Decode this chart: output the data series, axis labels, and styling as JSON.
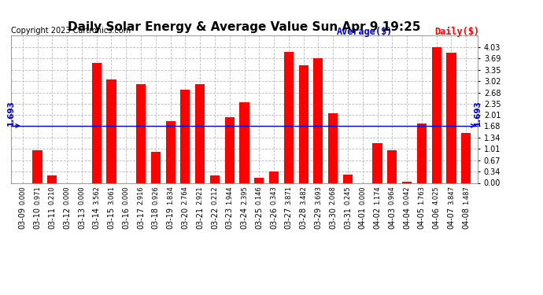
{
  "title": "Daily Solar Energy & Average Value Sun Apr 9 19:25",
  "copyright": "Copyright 2023 Cartronics.com",
  "legend_average": "Average($)",
  "legend_daily": "Daily($)",
  "average_value": 1.693,
  "categories": [
    "03-09",
    "03-10",
    "03-11",
    "03-12",
    "03-13",
    "03-14",
    "03-15",
    "03-16",
    "03-17",
    "03-18",
    "03-19",
    "03-20",
    "03-21",
    "03-22",
    "03-23",
    "03-24",
    "03-25",
    "03-26",
    "03-27",
    "03-28",
    "03-29",
    "03-30",
    "03-31",
    "04-01",
    "04-02",
    "04-03",
    "04-04",
    "04-05",
    "04-06",
    "04-07",
    "04-08"
  ],
  "values": [
    0.0,
    0.971,
    0.21,
    0.0,
    0.0,
    3.562,
    3.061,
    0.0,
    2.916,
    0.926,
    1.834,
    2.764,
    2.921,
    0.212,
    1.944,
    2.395,
    0.146,
    0.343,
    3.871,
    3.482,
    3.693,
    2.068,
    0.245,
    0.0,
    1.174,
    0.964,
    0.042,
    1.763,
    4.025,
    3.847,
    1.487
  ],
  "bar_color": "#ff0000",
  "avg_line_color": "#0000dd",
  "background_color": "#ffffff",
  "grid_color": "#bbbbbb",
  "title_color": "#000000",
  "copyright_color": "#000000",
  "avg_label_color": "#0000dd",
  "daily_label_color": "#ff0000",
  "ylim": [
    0.0,
    4.37
  ],
  "yticks": [
    0.0,
    0.34,
    0.67,
    1.01,
    1.34,
    1.68,
    2.01,
    2.35,
    2.68,
    3.02,
    3.35,
    3.69,
    4.03
  ],
  "title_fontsize": 11,
  "copyright_fontsize": 7,
  "tick_fontsize": 7,
  "value_fontsize": 6,
  "legend_fontsize": 8.5,
  "avg_label_fontsize": 7.5,
  "bar_width": 0.65
}
